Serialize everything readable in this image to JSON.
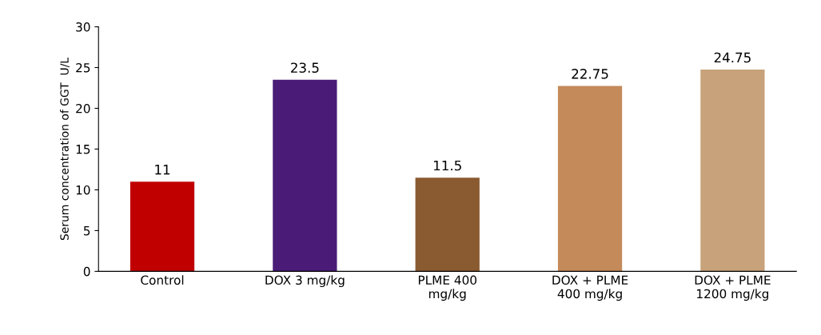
{
  "chart_data": {
    "type": "bar",
    "ylabel": "Serum concentration of GGT  U/L",
    "categories": [
      "Control",
      "DOX 3 mg/kg",
      "PLME 400\nmg/kg",
      "DOX + PLME\n400 mg/kg",
      "DOX + PLME\n1200 mg/kg"
    ],
    "values": [
      11,
      23.5,
      11.5,
      22.75,
      24.75
    ],
    "colors": [
      "#c00000",
      "#4a1c78",
      "#8a5a30",
      "#c48a5a",
      "#c8a27a"
    ],
    "ylim": [
      0,
      30
    ],
    "yticks": [
      0,
      5,
      10,
      15,
      20,
      25,
      30
    ],
    "data_labels": true,
    "grid": false
  }
}
